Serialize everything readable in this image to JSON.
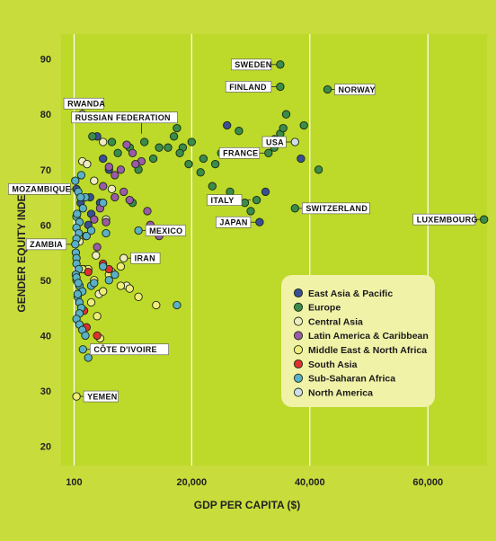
{
  "colors": {
    "background": "#c8dc3c",
    "plot_area": "#bdd92a",
    "gridline": "#ffffff",
    "legend_background": "#f0f2a8"
  },
  "chart_data": {
    "type": "scatter",
    "xlabel": "GDP PER CAPITA ($)",
    "ylabel": "GENDER EQUITY INDEX",
    "x_ticks": [
      {
        "value": 100,
        "label": "100"
      },
      {
        "value": 20000,
        "label": "20,000"
      },
      {
        "value": 40000,
        "label": "40,000"
      },
      {
        "value": 60000,
        "label": "60,000"
      }
    ],
    "y_ticks": [
      {
        "value": 20,
        "label": "20"
      },
      {
        "value": 30,
        "label": "30"
      },
      {
        "value": 40,
        "label": "40"
      },
      {
        "value": 50,
        "label": "50"
      },
      {
        "value": 60,
        "label": "60"
      },
      {
        "value": 70,
        "label": "70"
      },
      {
        "value": 80,
        "label": "80"
      },
      {
        "value": 90,
        "label": "90"
      }
    ],
    "xlim": [
      -2100,
      70000
    ],
    "ylim": [
      16.5,
      94.5
    ],
    "grid": "vertical",
    "legend_position": "right",
    "series": [
      {
        "name": "East Asia & Pacific",
        "color": "#3a4f96",
        "points": [
          [
            1700,
            52
          ],
          [
            2100,
            58
          ],
          [
            2500,
            60
          ],
          [
            3000,
            62
          ],
          [
            4000,
            76
          ],
          [
            4500,
            64
          ],
          [
            5000,
            72
          ],
          [
            6000,
            70
          ],
          [
            2800,
            65
          ],
          [
            26000,
            78
          ],
          [
            32500,
            66
          ],
          [
            31500,
            60.5
          ],
          [
            34000,
            75.5
          ],
          [
            38500,
            72
          ],
          [
            500,
            66.5
          ],
          [
            1200,
            64
          ]
        ]
      },
      {
        "name": "Europe",
        "color": "#3a8c4a",
        "points": [
          [
            35000,
            89
          ],
          [
            35000,
            85
          ],
          [
            43000,
            84.5
          ],
          [
            33000,
            73
          ],
          [
            34000,
            74
          ],
          [
            35000,
            76.5
          ],
          [
            35500,
            77.5
          ],
          [
            36000,
            80
          ],
          [
            39000,
            78
          ],
          [
            41500,
            70
          ],
          [
            31000,
            64.5
          ],
          [
            37500,
            63
          ],
          [
            69500,
            61
          ],
          [
            28000,
            77
          ],
          [
            25000,
            73
          ],
          [
            24000,
            71
          ],
          [
            22000,
            72
          ],
          [
            21500,
            69.5
          ],
          [
            19500,
            71
          ],
          [
            18500,
            74
          ],
          [
            18000,
            73
          ],
          [
            17000,
            76
          ],
          [
            16000,
            74
          ],
          [
            14500,
            74
          ],
          [
            13500,
            72
          ],
          [
            11000,
            70
          ],
          [
            23500,
            67
          ],
          [
            26500,
            66
          ],
          [
            30000,
            62.5
          ],
          [
            29000,
            64
          ],
          [
            3200,
            76
          ],
          [
            6500,
            75
          ],
          [
            7500,
            73
          ],
          [
            9500,
            74
          ],
          [
            12000,
            75
          ],
          [
            17500,
            77.5
          ],
          [
            10000,
            64
          ],
          [
            20000,
            75
          ]
        ]
      },
      {
        "name": "Central Asia",
        "color": "#f0eac0",
        "points": [
          [
            1500,
            71.5
          ],
          [
            2300,
            71
          ],
          [
            3500,
            68
          ],
          [
            5000,
            75
          ],
          [
            5500,
            61
          ],
          [
            6500,
            66.5
          ],
          [
            1000,
            57
          ],
          [
            3800,
            54.5
          ],
          [
            8500,
            54
          ],
          [
            9000,
            49
          ],
          [
            4300,
            47.5
          ]
        ]
      },
      {
        "name": "Latin America & Caribbean",
        "color": "#9a5aa8",
        "points": [
          [
            4000,
            56
          ],
          [
            5000,
            67
          ],
          [
            6000,
            70.5
          ],
          [
            7000,
            69
          ],
          [
            8000,
            70
          ],
          [
            9000,
            74.5
          ],
          [
            10000,
            73
          ],
          [
            11500,
            71.5
          ],
          [
            12500,
            62.5
          ],
          [
            13000,
            60
          ],
          [
            14500,
            58
          ],
          [
            3500,
            61
          ],
          [
            5500,
            60.5
          ],
          [
            7000,
            65
          ],
          [
            8500,
            66
          ],
          [
            9500,
            64.5
          ],
          [
            10500,
            71
          ],
          [
            4500,
            63
          ]
        ]
      },
      {
        "name": "Middle East & North Africa",
        "color": "#f0ec7a",
        "points": [
          [
            500,
            29
          ],
          [
            2500,
            52
          ],
          [
            3500,
            50
          ],
          [
            5000,
            48
          ],
          [
            6500,
            51.5
          ],
          [
            8000,
            52.5
          ],
          [
            9500,
            48.5
          ],
          [
            11000,
            47
          ],
          [
            14000,
            45.5
          ],
          [
            3000,
            46
          ],
          [
            4000,
            43.5
          ],
          [
            1500,
            52
          ],
          [
            6000,
            51
          ],
          [
            8000,
            49
          ],
          [
            4500,
            39.5
          ]
        ]
      },
      {
        "name": "South Asia",
        "color": "#e03030",
        "points": [
          [
            1800,
            44.5
          ],
          [
            2200,
            41.5
          ],
          [
            4000,
            40
          ],
          [
            5000,
            53
          ],
          [
            6000,
            52
          ],
          [
            2500,
            51.5
          ]
        ]
      },
      {
        "name": "Sub-Saharan Africa",
        "color": "#5ab0c8",
        "points": [
          [
            500,
            61.5
          ],
          [
            1000,
            60.5
          ],
          [
            500,
            59.5
          ],
          [
            900,
            58.5
          ],
          [
            500,
            57.5
          ],
          [
            300,
            56.5
          ],
          [
            400,
            55
          ],
          [
            500,
            54
          ],
          [
            500,
            53
          ],
          [
            900,
            52
          ],
          [
            400,
            51
          ],
          [
            500,
            50
          ],
          [
            1000,
            49
          ],
          [
            1500,
            48
          ],
          [
            700,
            47
          ],
          [
            1000,
            46
          ],
          [
            1300,
            45
          ],
          [
            1000,
            44
          ],
          [
            500,
            43
          ],
          [
            1000,
            42
          ],
          [
            1500,
            41
          ],
          [
            2000,
            40
          ],
          [
            1600,
            37.5
          ],
          [
            2500,
            36
          ],
          [
            3000,
            49
          ],
          [
            5000,
            52.5
          ],
          [
            6000,
            50
          ],
          [
            7000,
            51
          ],
          [
            3500,
            49.5
          ],
          [
            5500,
            58.5
          ],
          [
            5000,
            64
          ],
          [
            1300,
            69
          ],
          [
            2000,
            65
          ],
          [
            1600,
            63
          ],
          [
            2200,
            58
          ],
          [
            3000,
            59
          ],
          [
            11000,
            59
          ],
          [
            17500,
            45.5
          ],
          [
            300,
            68
          ],
          [
            800,
            66
          ],
          [
            1200,
            65
          ],
          [
            600,
            62
          ],
          [
            700,
            47.5
          ],
          [
            500,
            50.5
          ],
          [
            800,
            49.5
          ]
        ]
      },
      {
        "name": "North America",
        "color": "#d0dce8",
        "points": [
          [
            37500,
            75
          ],
          [
            1500,
            80
          ]
        ]
      }
    ],
    "callouts": [
      {
        "label": "SWEDEN",
        "x": 35000,
        "y": 89,
        "side": "left"
      },
      {
        "label": "FINLAND",
        "x": 35000,
        "y": 85,
        "side": "left"
      },
      {
        "label": "NORWAY",
        "x": 43000,
        "y": 84.5,
        "side": "right"
      },
      {
        "label": "RWANDA",
        "x": 1500,
        "y": 80,
        "side": "left-up"
      },
      {
        "label": "RUSSIAN FEDERATION",
        "x": 11500,
        "y": 76.5,
        "side": "up"
      },
      {
        "label": "USA",
        "x": 37500,
        "y": 75,
        "side": "left"
      },
      {
        "label": "FRANCE",
        "x": 33000,
        "y": 73,
        "side": "left"
      },
      {
        "label": "MOZAMBIQUE",
        "x": 1000,
        "y": 66.5,
        "side": "left"
      },
      {
        "label": "ITALY",
        "x": 30000,
        "y": 64.5,
        "side": "left"
      },
      {
        "label": "SWITZERLAND",
        "x": 37500,
        "y": 63,
        "side": "right"
      },
      {
        "label": "JAPAN",
        "x": 31500,
        "y": 60.5,
        "side": "left"
      },
      {
        "label": "LUXEMBOURG",
        "x": 69500,
        "y": 61,
        "side": "left"
      },
      {
        "label": "MEXICO",
        "x": 11000,
        "y": 59,
        "side": "right"
      },
      {
        "label": "ZAMBIA",
        "x": 300,
        "y": 56.5,
        "side": "left"
      },
      {
        "label": "IRAN",
        "x": 8500,
        "y": 54,
        "side": "right"
      },
      {
        "label": "CÔTE D'IVOIRE",
        "x": 1600,
        "y": 37.5,
        "side": "right"
      },
      {
        "label": "YEMEN",
        "x": 500,
        "y": 29,
        "side": "right"
      }
    ]
  }
}
